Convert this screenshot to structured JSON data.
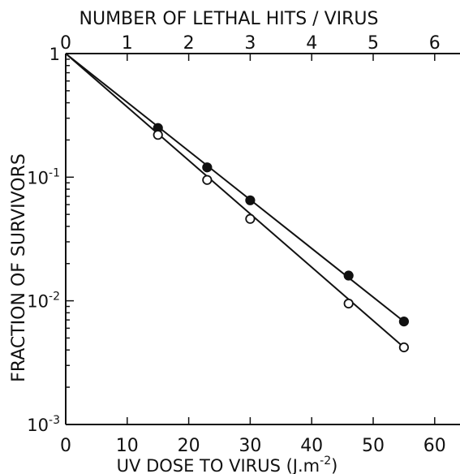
{
  "chart_data": {
    "type": "scatter",
    "title": "",
    "top_axis_label": "NUMBER OF LETHAL HITS / VIRUS",
    "xlabel": "UV DOSE TO VIRUS (J.m",
    "xlabel_sup": "-2",
    "xlabel_tail": ")",
    "ylabel": "FRACTION OF SURVIVORS",
    "xlim": [
      0,
      60
    ],
    "top_xlim": [
      0,
      6.13
    ],
    "y_scale": "log",
    "ylim": [
      0.001,
      1
    ],
    "x_ticks": [
      "0",
      "10",
      "20",
      "30",
      "40",
      "50",
      "60"
    ],
    "top_x_ticks": [
      "0",
      "1",
      "2",
      "3",
      "4",
      "5",
      "6"
    ],
    "y_ticks": [
      {
        "base": "1",
        "exp": ""
      },
      {
        "base": "10",
        "exp": "-1"
      },
      {
        "base": "10",
        "exp": "-2"
      },
      {
        "base": "10",
        "exp": "-3"
      }
    ],
    "grid": false,
    "series": [
      {
        "marker": "filled-circle",
        "points": [
          [
            15,
            0.25
          ],
          [
            23,
            0.12
          ],
          [
            30,
            0.065
          ],
          [
            46,
            0.016
          ],
          [
            55,
            0.0068
          ]
        ]
      },
      {
        "marker": "open-circle",
        "points": [
          [
            15,
            0.22
          ],
          [
            23,
            0.095
          ],
          [
            30,
            0.046
          ],
          [
            46,
            0.0095
          ],
          [
            55,
            0.0042
          ]
        ]
      }
    ],
    "fit_lines": [
      {
        "from": [
          0,
          1
        ],
        "to": [
          55,
          0.0068
        ]
      },
      {
        "from": [
          0,
          1
        ],
        "to": [
          55,
          0.0042
        ]
      }
    ]
  }
}
